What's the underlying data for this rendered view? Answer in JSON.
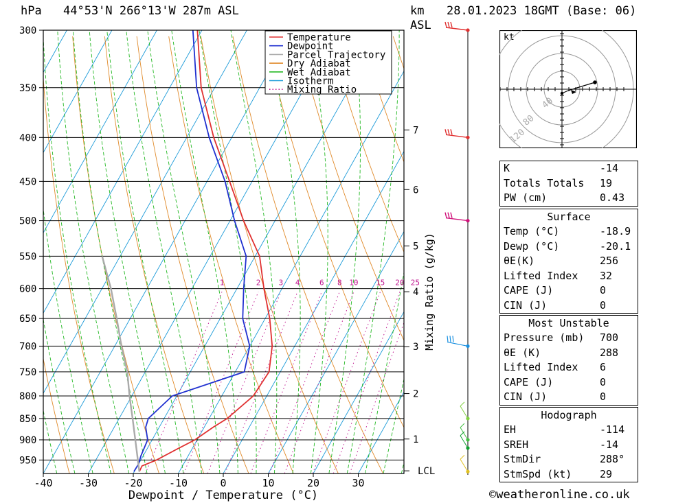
{
  "header": {
    "hpa_label": "hPa",
    "location": "44°53'N 266°13'W 287m ASL",
    "km_label": "km",
    "asl_label": "ASL",
    "datetime": "28.01.2023 18GMT (Base: 06)"
  },
  "chart_data": {
    "type": "line",
    "xlabel": "Dewpoint / Temperature (°C)",
    "x_ticks": [
      -40,
      -30,
      -20,
      -10,
      0,
      10,
      20,
      30
    ],
    "y_scale": "log",
    "pressure_levels": [
      300,
      350,
      400,
      450,
      500,
      550,
      600,
      650,
      700,
      750,
      800,
      850,
      900,
      950
    ],
    "pressure_range": [
      300,
      985
    ],
    "skew_deg_per_decade": 107,
    "km_ticks": [
      {
        "label": "LCL",
        "p": 978
      },
      {
        "label": "1",
        "p": 898
      },
      {
        "label": "2",
        "p": 795
      },
      {
        "label": "3",
        "p": 701
      },
      {
        "label": "4",
        "p": 605
      },
      {
        "label": "5",
        "p": 535
      },
      {
        "label": "6",
        "p": 460
      },
      {
        "label": "7",
        "p": 392
      }
    ],
    "mixing_ratio_label": "Mixing Ratio (g/kg)",
    "mixing_ratio_values": [
      "1",
      "2",
      "3",
      "4",
      "6",
      "8",
      "10",
      "15",
      "20",
      "25"
    ],
    "mixing_ratio_nums": [
      1,
      2,
      3,
      4,
      6,
      8,
      10,
      15,
      20,
      25
    ],
    "legend": [
      "Temperature",
      "Dewpoint",
      "Parcel Trajectory",
      "Dry Adiabat",
      "Wet Adiabat",
      "Isotherm",
      "Mixing Ratio"
    ],
    "series": [
      {
        "name": "Temperature",
        "color": "#e03030",
        "points": [
          [
            980,
            -18.9
          ],
          [
            965,
            -19
          ],
          [
            950,
            -16.5
          ],
          [
            920,
            -13
          ],
          [
            900,
            -10.5
          ],
          [
            870,
            -8
          ],
          [
            850,
            -6
          ],
          [
            800,
            -3
          ],
          [
            750,
            -2.5
          ],
          [
            700,
            -5
          ],
          [
            650,
            -9
          ],
          [
            600,
            -14
          ],
          [
            550,
            -19
          ],
          [
            500,
            -27
          ],
          [
            450,
            -35
          ],
          [
            400,
            -44
          ],
          [
            350,
            -53
          ],
          [
            300,
            -61
          ]
        ]
      },
      {
        "name": "Dewpoint",
        "color": "#2030d0",
        "points": [
          [
            980,
            -20.1
          ],
          [
            960,
            -20
          ],
          [
            940,
            -20.5
          ],
          [
            900,
            -21
          ],
          [
            870,
            -23
          ],
          [
            850,
            -23.5
          ],
          [
            800,
            -21
          ],
          [
            750,
            -8
          ],
          [
            700,
            -10
          ],
          [
            650,
            -15
          ],
          [
            600,
            -18.5
          ],
          [
            550,
            -22
          ],
          [
            500,
            -29
          ],
          [
            450,
            -36
          ],
          [
            400,
            -45
          ],
          [
            350,
            -54
          ],
          [
            300,
            -62
          ]
        ]
      },
      {
        "name": "Parcel Trajectory",
        "color": "#aaaaaa",
        "points": [
          [
            980,
            -18.9
          ],
          [
            850,
            -27
          ],
          [
            800,
            -30.5
          ],
          [
            750,
            -34
          ],
          [
            700,
            -38.5
          ],
          [
            650,
            -43
          ],
          [
            600,
            -48
          ],
          [
            550,
            -54
          ]
        ]
      }
    ],
    "wind_barbs": [
      {
        "p": 300,
        "color": "#e03030"
      },
      {
        "p": 400,
        "color": "#e03030"
      },
      {
        "p": 500,
        "color": "#d0107a"
      },
      {
        "p": 700,
        "color": "#1a90e0"
      },
      {
        "p": 850,
        "color": "#80d040"
      },
      {
        "p": 900,
        "color": "#40c040"
      },
      {
        "p": 920,
        "color": "#10a030"
      },
      {
        "p": 980,
        "color": "#e0c020"
      }
    ]
  },
  "hodograph": {
    "unit_label": "kt",
    "ring_labels": [
      "40",
      "80",
      "120"
    ]
  },
  "indices": {
    "rows": [
      {
        "label": "K",
        "value": "-14"
      },
      {
        "label": "Totals Totals",
        "value": "19"
      },
      {
        "label": "PW (cm)",
        "value": "0.43"
      }
    ]
  },
  "surface": {
    "title": "Surface",
    "rows": [
      {
        "label": "Temp (°C)",
        "value": "-18.9"
      },
      {
        "label": "Dewp (°C)",
        "value": "-20.1"
      },
      {
        "label": "θE(K)",
        "value": "256"
      },
      {
        "label": "Lifted Index",
        "value": "32"
      },
      {
        "label": "CAPE (J)",
        "value": "0"
      },
      {
        "label": "CIN (J)",
        "value": "0"
      }
    ]
  },
  "most_unstable": {
    "title": "Most Unstable",
    "rows": [
      {
        "label": "Pressure (mb)",
        "value": "700"
      },
      {
        "label": "θE (K)",
        "value": "288"
      },
      {
        "label": "Lifted Index",
        "value": "6"
      },
      {
        "label": "CAPE (J)",
        "value": "0"
      },
      {
        "label": "CIN (J)",
        "value": "0"
      }
    ]
  },
  "hodograph_table": {
    "title": "Hodograph",
    "rows": [
      {
        "label": "EH",
        "value": "-114"
      },
      {
        "label": "SREH",
        "value": "-14"
      },
      {
        "label": "StmDir",
        "value": "288°"
      },
      {
        "label": "StmSpd (kt)",
        "value": "29"
      }
    ]
  },
  "footer": {
    "copyright": "©weatheronline.co.uk"
  }
}
